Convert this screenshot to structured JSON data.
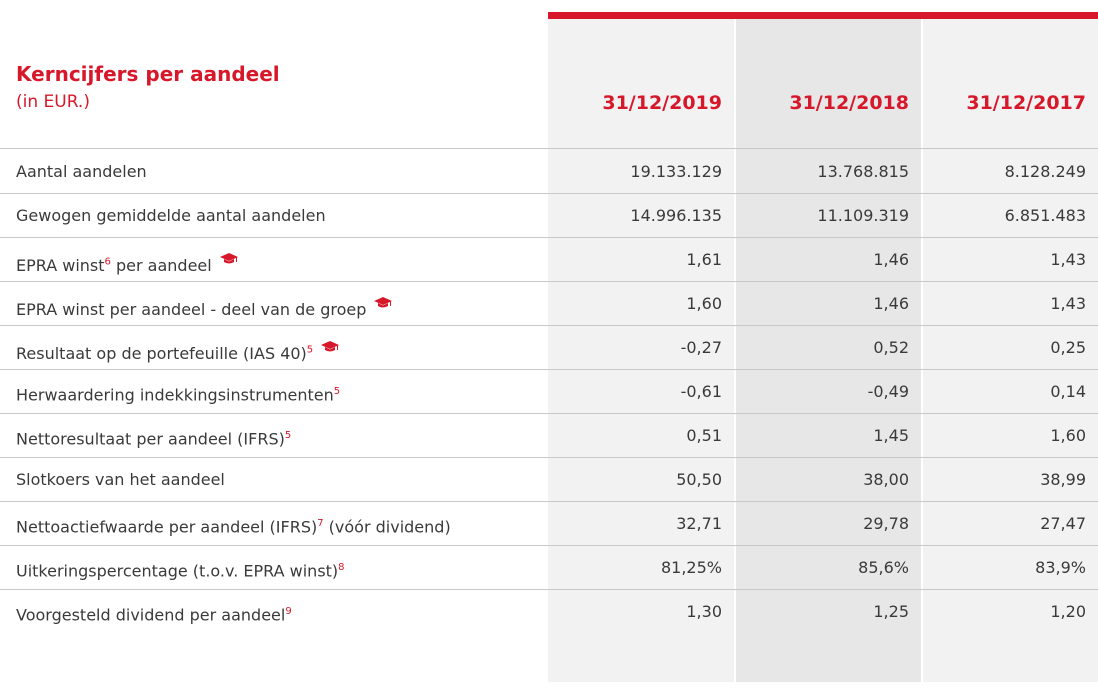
{
  "header": {
    "title": "Kerncijfers per aandeel",
    "subtitle": "(in EUR.)",
    "columns": [
      "31/12/2019",
      "31/12/2018",
      "31/12/2017"
    ]
  },
  "table": {
    "rows": [
      {
        "label": "Aantal aandelen",
        "values": [
          "19.133.129",
          "13.768.815",
          "8.128.249"
        ]
      },
      {
        "label": "Gewogen gemiddelde aantal aandelen",
        "values": [
          "14.996.135",
          "11.109.319",
          "6.851.483"
        ]
      },
      {
        "label": "EPRA winst",
        "sup": "6",
        "suffix": " per aandeel",
        "icon": true,
        "values": [
          "1,61",
          "1,46",
          "1,43"
        ]
      },
      {
        "label": "EPRA winst per aandeel - deel van de groep",
        "icon": true,
        "values": [
          "1,60",
          "1,46",
          "1,43"
        ]
      },
      {
        "label": "Resultaat op de portefeuille (IAS 40)",
        "sup": "5",
        "icon": true,
        "values": [
          "-0,27",
          "0,52",
          "0,25"
        ]
      },
      {
        "label": "Herwaardering indekkingsinstrumenten",
        "sup": "5",
        "values": [
          "-0,61",
          "-0,49",
          "0,14"
        ]
      },
      {
        "label": "Nettoresultaat per aandeel (IFRS)",
        "sup": "5",
        "values": [
          "0,51",
          "1,45",
          "1,60"
        ]
      },
      {
        "label": "Slotkoers van het aandeel",
        "values": [
          "50,50",
          "38,00",
          "38,99"
        ]
      },
      {
        "label": "Nettoactiefwaarde per aandeel (IFRS)",
        "sup": "7",
        "suffix": " (vóór dividend)",
        "values": [
          "32,71",
          "29,78",
          "27,47"
        ]
      },
      {
        "label": "Uitkeringspercentage (t.o.v. EPRA winst)",
        "sup": "8",
        "values": [
          "81,25%",
          "85,6%",
          "83,9%"
        ]
      },
      {
        "label": "Voorgesteld dividend per aandeel",
        "sup": "9",
        "values": [
          "1,30",
          "1,25",
          "1,20"
        ]
      }
    ]
  }
}
